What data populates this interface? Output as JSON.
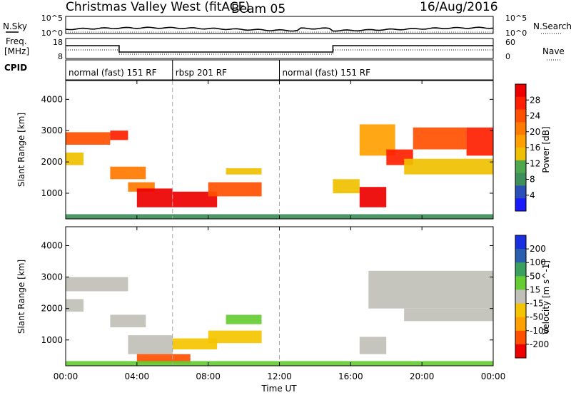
{
  "header": {
    "title": "Christmas Valley West (fitACF)",
    "beam": "Beam 05",
    "date": "16/Aug/2016"
  },
  "strip_sky": {
    "left_label": "N.Sky",
    "left_ticks": [
      "10^5",
      "10^0"
    ],
    "right_ticks": [
      "10^5",
      "10^0"
    ],
    "right_label": "N.Search"
  },
  "strip_freq": {
    "left_label_1": "Freq.",
    "left_label_2": "[MHz]",
    "left_ticks": [
      "18",
      "8"
    ],
    "right_ticks": [
      "60",
      "0"
    ],
    "right_label": "Nave"
  },
  "cpid": {
    "label": "CPID",
    "segments": [
      {
        "text": "normal (fast) 151 RF",
        "start_hour": 0
      },
      {
        "text": "rbsp 201 RF",
        "start_hour": 6
      },
      {
        "text": "normal (fast) 151 RF",
        "start_hour": 12
      }
    ]
  },
  "colors": {
    "power": [
      "#1a1aff",
      "#2a4fb8",
      "#3f8f5a",
      "#4ea84e",
      "#f0c000",
      "#ffa000",
      "#ff7a00",
      "#ff5000",
      "#ff2000",
      "#ee0000"
    ],
    "velocity": [
      "#ee0000",
      "#ff5000",
      "#ffa000",
      "#f5c400",
      "#c0c0b8",
      "#66cc33",
      "#3aa060",
      "#2a5fb0",
      "#1a2fe0"
    ],
    "ground_scatter": "#c0c0b8"
  },
  "chart_data": [
    {
      "type": "heatmap",
      "title": "",
      "xlabel": "",
      "ylabel": "Slant Range [km]",
      "x_ticks": [
        "00:00",
        "04:00",
        "08:00",
        "12:00",
        "16:00",
        "20:00",
        "00:00"
      ],
      "xlim_hours": [
        0,
        24
      ],
      "y_ticks": [
        "1000",
        "2000",
        "3000",
        "4000"
      ],
      "ylim_km": [
        180,
        4600
      ],
      "colorbar_label": "Power [dB]",
      "colorbar_ticks": [
        "4",
        "8",
        "12",
        "16",
        "20",
        "24",
        "28"
      ],
      "colorbar_range": [
        0,
        30
      ],
      "mode_change_hours": [
        6,
        12
      ],
      "echo_regions": [
        {
          "t0": 0.0,
          "t1": 2.5,
          "r0": 2550,
          "r1": 2950,
          "value": 22
        },
        {
          "t0": 2.5,
          "t1": 3.5,
          "r0": 2700,
          "r1": 3000,
          "value": 26
        },
        {
          "t0": 0.0,
          "t1": 1.0,
          "r0": 1900,
          "r1": 2300,
          "value": 14
        },
        {
          "t0": 2.5,
          "t1": 4.5,
          "r0": 1450,
          "r1": 1850,
          "value": 18
        },
        {
          "t0": 3.5,
          "t1": 5.0,
          "r0": 1050,
          "r1": 1350,
          "value": 20
        },
        {
          "t0": 4.0,
          "t1": 6.0,
          "r0": 550,
          "r1": 1150,
          "value": 28
        },
        {
          "t0": 6.0,
          "t1": 8.5,
          "r0": 550,
          "r1": 1050,
          "value": 27
        },
        {
          "t0": 8.0,
          "t1": 11.0,
          "r0": 900,
          "r1": 1350,
          "value": 22
        },
        {
          "t0": 9.0,
          "t1": 11.0,
          "r0": 1600,
          "r1": 1800,
          "value": 12
        },
        {
          "t0": 15.0,
          "t1": 16.5,
          "r0": 1000,
          "r1": 1450,
          "value": 14
        },
        {
          "t0": 16.5,
          "t1": 18.0,
          "r0": 550,
          "r1": 1200,
          "value": 27
        },
        {
          "t0": 16.5,
          "t1": 18.5,
          "r0": 2200,
          "r1": 3200,
          "value": 16
        },
        {
          "t0": 18.0,
          "t1": 19.5,
          "r0": 1900,
          "r1": 2400,
          "value": 24
        },
        {
          "t0": 19.5,
          "t1": 22.5,
          "r0": 2400,
          "r1": 3100,
          "value": 22
        },
        {
          "t0": 19.0,
          "t1": 24.0,
          "r0": 1600,
          "r1": 2100,
          "value": 12
        },
        {
          "t0": 22.5,
          "t1": 24.0,
          "r0": 2200,
          "r1": 3100,
          "value": 24
        },
        {
          "t0": 0.0,
          "t1": 24.0,
          "r0": 180,
          "r1": 330,
          "value": 8
        }
      ]
    },
    {
      "type": "heatmap",
      "title": "",
      "xlabel": "Time UT",
      "ylabel": "Slant Range [km]",
      "x_ticks": [
        "00:00",
        "04:00",
        "08:00",
        "12:00",
        "16:00",
        "20:00",
        "00:00"
      ],
      "xlim_hours": [
        0,
        24
      ],
      "y_ticks": [
        "1000",
        "2000",
        "3000",
        "4000"
      ],
      "ylim_km": [
        180,
        4600
      ],
      "colorbar_label": "Velocity [m s^-1]",
      "colorbar_ticks": [
        "200",
        "100",
        "50",
        "15",
        "-15",
        "-50",
        "-100",
        "-200"
      ],
      "colorbar_range": [
        -250,
        250
      ],
      "mode_change_hours": [
        6,
        12
      ],
      "echo_regions": [
        {
          "t0": 0.0,
          "t1": 3.5,
          "r0": 2550,
          "r1": 3000,
          "value": 0
        },
        {
          "t0": 0.0,
          "t1": 1.0,
          "r0": 1900,
          "r1": 2300,
          "value": 0
        },
        {
          "t0": 2.5,
          "t1": 4.5,
          "r0": 1400,
          "r1": 1800,
          "value": 0
        },
        {
          "t0": 3.5,
          "t1": 6.0,
          "r0": 550,
          "r1": 1150,
          "value": 0
        },
        {
          "t0": 6.0,
          "t1": 8.5,
          "r0": 700,
          "r1": 1050,
          "value": -70
        },
        {
          "t0": 8.0,
          "t1": 11.0,
          "r0": 900,
          "r1": 1300,
          "value": -60
        },
        {
          "t0": 9.0,
          "t1": 11.0,
          "r0": 1500,
          "r1": 1800,
          "value": 30
        },
        {
          "t0": 4.0,
          "t1": 7.0,
          "r0": 250,
          "r1": 550,
          "value": -180
        },
        {
          "t0": 16.5,
          "t1": 18.0,
          "r0": 550,
          "r1": 1100,
          "value": 0
        },
        {
          "t0": 17.0,
          "t1": 24.0,
          "r0": 2000,
          "r1": 3200,
          "value": 0
        },
        {
          "t0": 19.0,
          "t1": 24.0,
          "r0": 1600,
          "r1": 2000,
          "value": 0
        },
        {
          "t0": 0.0,
          "t1": 24.0,
          "r0": 180,
          "r1": 330,
          "value": 30
        }
      ]
    }
  ]
}
